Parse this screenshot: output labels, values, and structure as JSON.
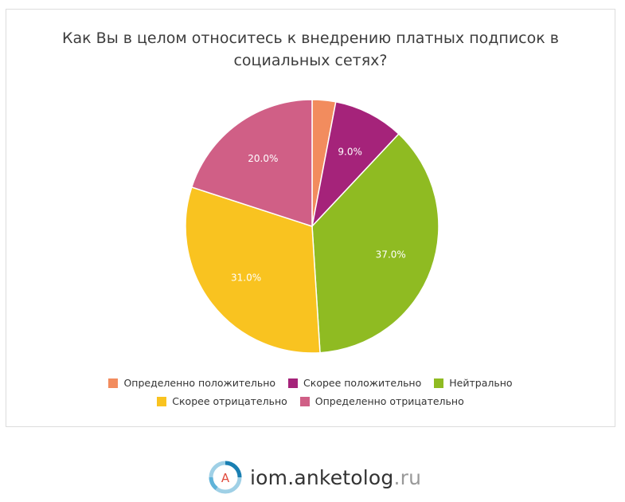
{
  "chart_data": {
    "type": "pie",
    "title": "Как Вы в целом относитесь к внедрению платных подписок в социальных сетях?",
    "slices": [
      {
        "label": "Определенно положительно",
        "value": 3.0,
        "display": "",
        "color": "#f28c5e"
      },
      {
        "label": "Скорее положительно",
        "value": 9.0,
        "display": "9.0%",
        "color": "#a5237a"
      },
      {
        "label": "Нейтрально",
        "value": 37.0,
        "display": "37.0%",
        "color": "#8fbb22"
      },
      {
        "label": "Скорее отрицательно",
        "value": 31.0,
        "display": "31.0%",
        "color": "#f9c320"
      },
      {
        "label": "Определенно отрицательно",
        "value": 20.0,
        "display": "20.0%",
        "color": "#d05f86"
      }
    ],
    "legend_position": "bottom"
  },
  "footer": {
    "logo_icon": "anketolog-logo-icon",
    "logo_letter": "A",
    "brand_main": "iom.anketolog",
    "brand_tld": ".ru"
  }
}
